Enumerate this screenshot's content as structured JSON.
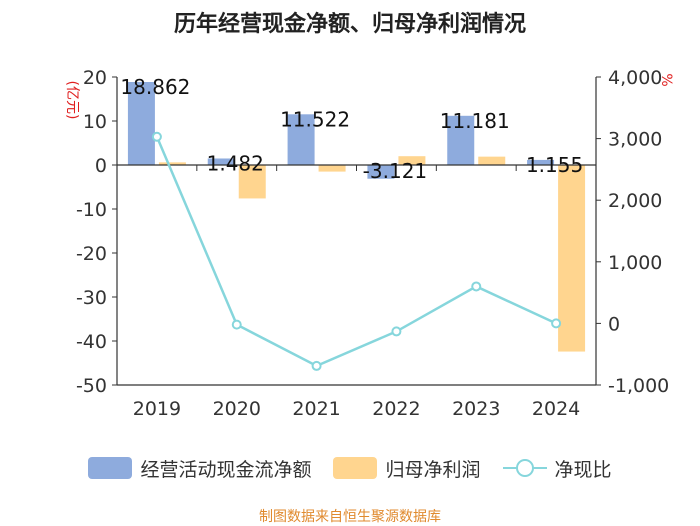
{
  "chart_data": {
    "type": "bar+line",
    "title": "历年经营现金净额、归母净利润情况",
    "categories": [
      "2019",
      "2020",
      "2021",
      "2022",
      "2023",
      "2024"
    ],
    "left_axis": {
      "unit": "(亿元)",
      "min": -50,
      "max": 20,
      "ticks": [
        20,
        10,
        0,
        -10,
        -20,
        -30,
        -40,
        -50
      ],
      "tick_labels": [
        "20",
        "10",
        "0",
        "-10",
        "-20",
        "-30",
        "-40",
        "-50"
      ]
    },
    "right_axis": {
      "unit": "%",
      "min": -1000,
      "max": 4000,
      "ticks": [
        4000,
        3000,
        2000,
        1000,
        0,
        -1000
      ],
      "tick_labels": [
        "4,000",
        "3,000",
        "2,000",
        "1,000",
        "0",
        "-1,000"
      ]
    },
    "series": [
      {
        "name": "经营活动现金流净额",
        "type": "bar",
        "axis": "left",
        "color": "#8eabdd",
        "values": [
          18.862,
          1.482,
          11.522,
          -3.121,
          11.181,
          1.155
        ],
        "labels": [
          "18.862",
          "1.482",
          "11.522",
          "-3.121",
          "11.181",
          "1.155"
        ]
      },
      {
        "name": "归母净利润",
        "type": "bar",
        "axis": "left",
        "color": "#ffd58f",
        "values": [
          0.6,
          -7.6,
          -1.5,
          2.0,
          1.9,
          -42.4
        ]
      },
      {
        "name": "净现比",
        "type": "line",
        "axis": "right",
        "color": "#86d6dc",
        "values": [
          3030,
          -20,
          -690,
          -130,
          600,
          0
        ]
      }
    ],
    "legend": [
      "经营活动现金流净额",
      "归母净利润",
      "净现比"
    ],
    "legend_position": "bottom"
  },
  "source_text": "制图数据来自恒生聚源数据库"
}
